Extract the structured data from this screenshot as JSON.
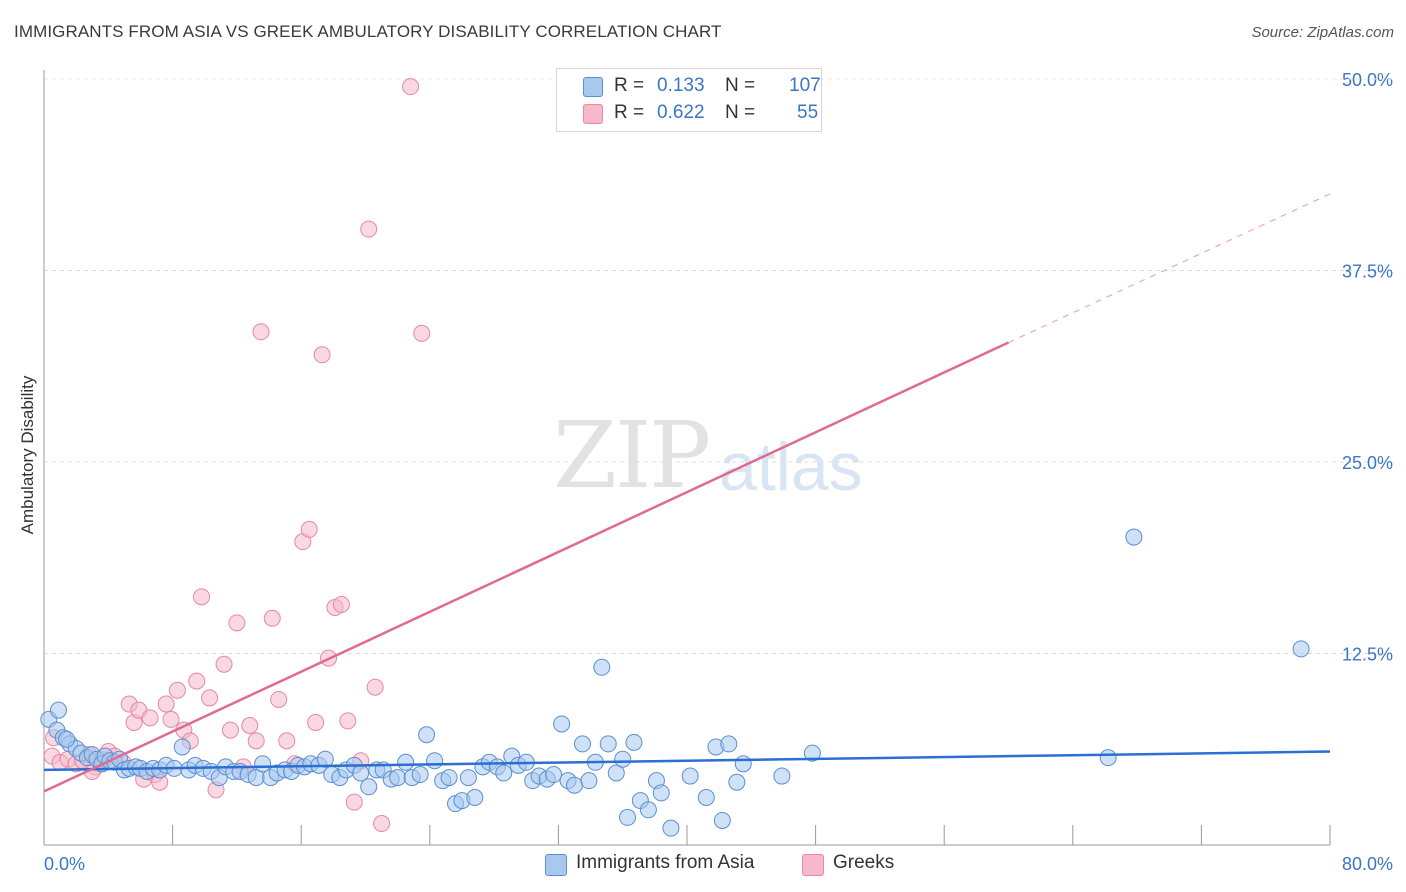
{
  "header": {
    "title": "IMMIGRANTS FROM ASIA VS GREEK AMBULATORY DISABILITY CORRELATION CHART",
    "source": "Source: ZipAtlas.com"
  },
  "watermark": {
    "zip": "ZIP",
    "atlas": "atlas"
  },
  "legend": {
    "r_label": "R =",
    "n_label": "N =",
    "rows": [
      {
        "r": "0.133",
        "n": "107",
        "color": "#a8c8ef"
      },
      {
        "r": "0.622",
        "n": "55",
        "color": "#f6b8ca"
      }
    ]
  },
  "colors": {
    "blue_fill": "#a8c8ef",
    "blue_stroke": "#5b8fd1",
    "blue_line": "#2a6fd1",
    "pink_fill": "#f6b8ca",
    "pink_stroke": "#e688a6",
    "pink_line": "#e06a93",
    "tick_text": "#3a76c4"
  },
  "chart_data": {
    "type": "scatter",
    "title": "IMMIGRANTS FROM ASIA VS GREEK AMBULATORY DISABILITY CORRELATION CHART",
    "xlabel": "",
    "ylabel": "Ambulatory Disability",
    "xlim": [
      0,
      80
    ],
    "ylim": [
      0,
      52
    ],
    "x_tick_labels": [
      "0.0%",
      "80.0%"
    ],
    "y_ticks": [
      12.5,
      25.0,
      37.5,
      50.0
    ],
    "y_tick_labels": [
      "12.5%",
      "25.0%",
      "37.5%",
      "50.0%"
    ],
    "grid": "horizontal dashed",
    "legend_position": "top-center",
    "series": [
      {
        "name": "Immigrants from Asia",
        "color": "#a8c8ef",
        "trend": {
          "x0": 0,
          "y0": 4.9,
          "x1": 80,
          "y1": 6.1
        },
        "points": [
          [
            0.3,
            8.2
          ],
          [
            0.8,
            7.5
          ],
          [
            1.2,
            7.0
          ],
          [
            1.6,
            6.6
          ],
          [
            2.0,
            6.3
          ],
          [
            2.3,
            6.0
          ],
          [
            2.7,
            5.7
          ],
          [
            3.0,
            5.9
          ],
          [
            3.3,
            5.6
          ],
          [
            3.6,
            5.3
          ],
          [
            3.8,
            5.8
          ],
          [
            4.1,
            5.5
          ],
          [
            4.4,
            5.4
          ],
          [
            4.7,
            5.6
          ],
          [
            5.0,
            4.9
          ],
          [
            5.3,
            5.0
          ],
          [
            5.7,
            5.1
          ],
          [
            6.0,
            5.0
          ],
          [
            6.4,
            4.8
          ],
          [
            6.8,
            5.0
          ],
          [
            7.2,
            4.9
          ],
          [
            7.6,
            5.2
          ],
          [
            8.1,
            5.0
          ],
          [
            8.6,
            6.4
          ],
          [
            9.0,
            4.9
          ],
          [
            9.4,
            5.2
          ],
          [
            9.9,
            5.0
          ],
          [
            10.4,
            4.8
          ],
          [
            10.9,
            4.4
          ],
          [
            11.3,
            5.1
          ],
          [
            11.8,
            4.8
          ],
          [
            12.2,
            4.8
          ],
          [
            12.7,
            4.6
          ],
          [
            13.2,
            4.4
          ],
          [
            13.6,
            5.3
          ],
          [
            14.1,
            4.4
          ],
          [
            14.5,
            4.7
          ],
          [
            15.0,
            4.9
          ],
          [
            15.4,
            4.8
          ],
          [
            15.8,
            5.2
          ],
          [
            16.2,
            5.1
          ],
          [
            16.6,
            5.3
          ],
          [
            17.1,
            5.2
          ],
          [
            17.5,
            5.6
          ],
          [
            17.9,
            4.6
          ],
          [
            18.4,
            4.4
          ],
          [
            18.8,
            4.9
          ],
          [
            19.3,
            5.2
          ],
          [
            19.7,
            4.7
          ],
          [
            20.2,
            3.8
          ],
          [
            20.7,
            4.9
          ],
          [
            21.1,
            4.9
          ],
          [
            21.6,
            4.3
          ],
          [
            22.0,
            4.4
          ],
          [
            22.5,
            5.4
          ],
          [
            22.9,
            4.4
          ],
          [
            23.4,
            4.6
          ],
          [
            23.8,
            7.2
          ],
          [
            24.3,
            5.5
          ],
          [
            24.8,
            4.2
          ],
          [
            25.2,
            4.4
          ],
          [
            25.6,
            2.7
          ],
          [
            26.0,
            2.9
          ],
          [
            26.4,
            4.4
          ],
          [
            26.8,
            3.1
          ],
          [
            27.3,
            5.1
          ],
          [
            27.7,
            5.4
          ],
          [
            28.2,
            5.1
          ],
          [
            28.6,
            4.7
          ],
          [
            29.1,
            5.8
          ],
          [
            29.5,
            5.2
          ],
          [
            30.0,
            5.4
          ],
          [
            30.4,
            4.2
          ],
          [
            30.8,
            4.5
          ],
          [
            31.3,
            4.3
          ],
          [
            31.7,
            4.6
          ],
          [
            32.2,
            7.9
          ],
          [
            32.6,
            4.2
          ],
          [
            33.0,
            3.9
          ],
          [
            33.5,
            6.6
          ],
          [
            33.9,
            4.2
          ],
          [
            34.3,
            5.4
          ],
          [
            34.7,
            11.6
          ],
          [
            35.1,
            6.6
          ],
          [
            35.6,
            4.7
          ],
          [
            36.0,
            5.6
          ],
          [
            36.3,
            1.8
          ],
          [
            36.7,
            6.7
          ],
          [
            37.1,
            2.9
          ],
          [
            37.6,
            2.3
          ],
          [
            38.1,
            4.2
          ],
          [
            38.4,
            3.4
          ],
          [
            39.0,
            1.1
          ],
          [
            40.2,
            4.5
          ],
          [
            41.2,
            3.1
          ],
          [
            41.8,
            6.4
          ],
          [
            42.2,
            1.6
          ],
          [
            42.6,
            6.6
          ],
          [
            43.1,
            4.1
          ],
          [
            43.5,
            5.3
          ],
          [
            45.9,
            4.5
          ],
          [
            47.8,
            6.0
          ],
          [
            66.2,
            5.7
          ],
          [
            67.8,
            20.1
          ],
          [
            78.2,
            12.8
          ],
          [
            0.9,
            8.8
          ],
          [
            1.4,
            6.9
          ]
        ]
      },
      {
        "name": "Greeks",
        "color": "#f6b8ca",
        "trend": {
          "x0": 0,
          "y0": 3.5,
          "x1": 60,
          "y1": 32.8,
          "dash_x1": 80,
          "dash_y1": 42.5
        },
        "points": [
          [
            0.5,
            5.8
          ],
          [
            1.0,
            5.4
          ],
          [
            1.5,
            5.6
          ],
          [
            2.0,
            5.3
          ],
          [
            2.4,
            5.5
          ],
          [
            2.8,
            5.9
          ],
          [
            3.2,
            5.1
          ],
          [
            3.6,
            5.6
          ],
          [
            4.0,
            6.1
          ],
          [
            4.4,
            5.8
          ],
          [
            4.9,
            5.4
          ],
          [
            5.3,
            9.2
          ],
          [
            5.6,
            8.0
          ],
          [
            5.9,
            8.8
          ],
          [
            6.2,
            4.3
          ],
          [
            6.6,
            8.3
          ],
          [
            6.9,
            4.6
          ],
          [
            7.2,
            4.1
          ],
          [
            7.6,
            9.2
          ],
          [
            7.9,
            8.2
          ],
          [
            8.3,
            10.1
          ],
          [
            8.7,
            7.5
          ],
          [
            9.1,
            6.8
          ],
          [
            9.5,
            10.7
          ],
          [
            9.8,
            16.2
          ],
          [
            10.3,
            9.6
          ],
          [
            10.7,
            3.6
          ],
          [
            11.2,
            11.8
          ],
          [
            11.6,
            7.5
          ],
          [
            12.0,
            14.5
          ],
          [
            12.4,
            5.1
          ],
          [
            12.8,
            7.8
          ],
          [
            13.2,
            6.8
          ],
          [
            13.5,
            33.5
          ],
          [
            14.2,
            14.8
          ],
          [
            14.6,
            9.5
          ],
          [
            15.1,
            6.8
          ],
          [
            15.6,
            5.3
          ],
          [
            16.1,
            19.8
          ],
          [
            16.5,
            20.6
          ],
          [
            16.9,
            8.0
          ],
          [
            17.3,
            32.0
          ],
          [
            17.7,
            12.2
          ],
          [
            18.1,
            15.5
          ],
          [
            18.5,
            15.7
          ],
          [
            18.9,
            8.1
          ],
          [
            19.3,
            2.8
          ],
          [
            19.7,
            5.5
          ],
          [
            20.2,
            40.2
          ],
          [
            20.6,
            10.3
          ],
          [
            21.0,
            1.4
          ],
          [
            22.8,
            49.5
          ],
          [
            23.5,
            33.4
          ],
          [
            0.6,
            7.0
          ],
          [
            3.0,
            4.8
          ]
        ]
      }
    ]
  },
  "bottom_legend": [
    {
      "label": "Immigrants from Asia",
      "color": "#a8c8ef"
    },
    {
      "label": "Greeks",
      "color": "#f6b8ca"
    }
  ]
}
